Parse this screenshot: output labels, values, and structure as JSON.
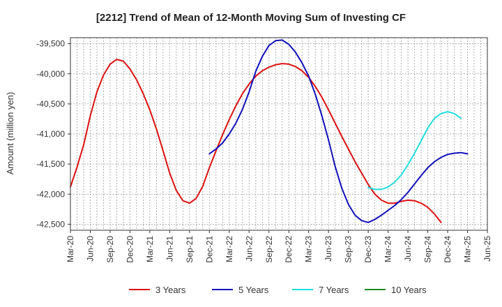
{
  "chart_data": {
    "type": "line",
    "title": "[2212]  Trend of Mean of 12-Month Moving Sum of Investing CF",
    "xlabel": "",
    "ylabel": "Amount (million yen)",
    "ylim": [
      -42600,
      -39400
    ],
    "yticks": [
      -39500,
      -40000,
      -40500,
      -41000,
      -41500,
      -42000,
      -42500
    ],
    "ytick_labels": [
      "-39,500",
      "-40,000",
      "-40,500",
      "-41,000",
      "-41,500",
      "-42,000",
      "-42,500"
    ],
    "x_start": "Mar-20",
    "x_end": "Jun-25",
    "x_tick_labels": [
      "Mar-20",
      "Jun-20",
      "Sep-20",
      "Dec-20",
      "Mar-21",
      "Jun-21",
      "Sep-21",
      "Dec-21",
      "Mar-22",
      "Jun-22",
      "Sep-22",
      "Dec-22",
      "Mar-23",
      "Jun-23",
      "Sep-23",
      "Dec-23",
      "Mar-24",
      "Jun-24",
      "Sep-24",
      "Dec-24",
      "Mar-25",
      "Jun-25"
    ],
    "grid": true,
    "legend_position": "bottom",
    "series": [
      {
        "name": "3 Years",
        "color": "#dd1111",
        "start_index": 0,
        "values": [
          -41880,
          -41550,
          -41180,
          -40700,
          -40300,
          -40020,
          -39840,
          -39760,
          -39790,
          -39920,
          -40100,
          -40330,
          -40600,
          -40920,
          -41280,
          -41650,
          -41940,
          -42110,
          -42150,
          -42070,
          -41870,
          -41560,
          -41280,
          -41010,
          -40760,
          -40530,
          -40330,
          -40170,
          -40040,
          -39950,
          -39890,
          -39850,
          -39830,
          -39840,
          -39880,
          -39950,
          -40060,
          -40210,
          -40390,
          -40600,
          -40820,
          -41040,
          -41250,
          -41460,
          -41650,
          -41840,
          -42000,
          -42100,
          -42150,
          -42150,
          -42120,
          -42100,
          -42110,
          -42150,
          -42220,
          -42330,
          -42470
        ]
      },
      {
        "name": "5 Years",
        "color": "#1111bb",
        "start_index": 21,
        "values": [
          -41330,
          -41250,
          -41150,
          -41000,
          -40820,
          -40590,
          -40300,
          -39960,
          -39710,
          -39530,
          -39450,
          -39440,
          -39510,
          -39640,
          -39820,
          -40040,
          -40340,
          -40700,
          -41100,
          -41540,
          -41900,
          -42170,
          -42350,
          -42440,
          -42470,
          -42420,
          -42350,
          -42270,
          -42190,
          -42090,
          -41970,
          -41830,
          -41690,
          -41560,
          -41460,
          -41390,
          -41340,
          -41320,
          -41310,
          -41330
        ]
      },
      {
        "name": "7 Years",
        "color": "#22dddd",
        "start_index": 45,
        "values": [
          -41890,
          -41920,
          -41920,
          -41880,
          -41800,
          -41680,
          -41510,
          -41320,
          -41110,
          -40900,
          -40740,
          -40660,
          -40630,
          -40660,
          -40740
        ]
      },
      {
        "name": "10 Years",
        "color": "#228822",
        "start_index": 0,
        "values": []
      }
    ]
  }
}
